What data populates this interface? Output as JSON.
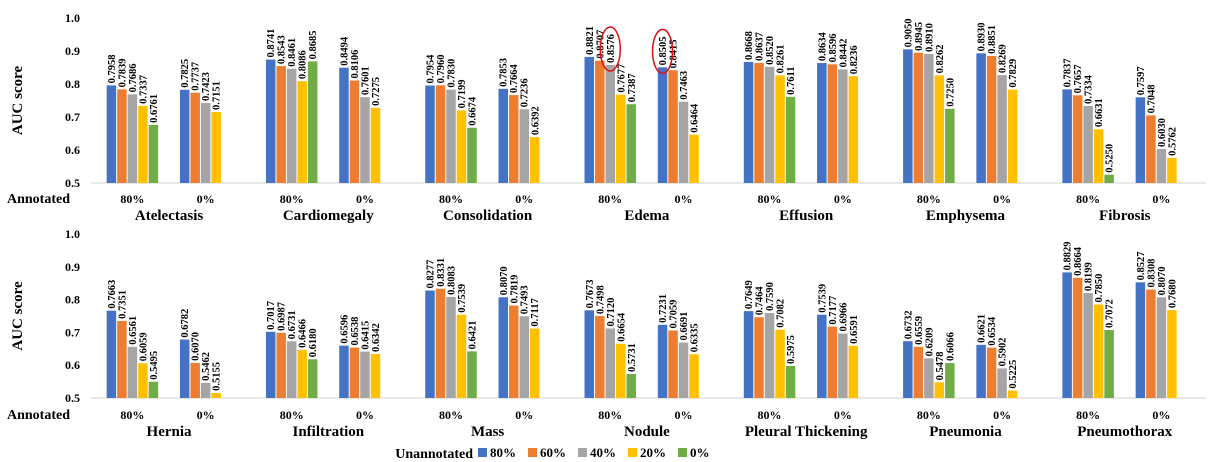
{
  "chart_data": {
    "type": "bar",
    "ylabel": "AUC score",
    "ylim": [
      0.5,
      1.0
    ],
    "yticks": [
      "0.5",
      "0.6",
      "0.7",
      "0.8",
      "0.9",
      "1.0"
    ],
    "row_label": "Annotated",
    "groups": [
      "80%",
      "0%"
    ],
    "legend": {
      "title": "Unannotated",
      "placement": "bottom",
      "series": [
        {
          "name": "80%",
          "color": "#4472C4"
        },
        {
          "name": "60%",
          "color": "#ED7D31"
        },
        {
          "name": "40%",
          "color": "#A5A5A5"
        },
        {
          "name": "20%",
          "color": "#FFC000"
        },
        {
          "name": "0%",
          "color": "#70AD47"
        }
      ]
    },
    "panels": [
      {
        "categories": [
          {
            "name": "Atelectasis",
            "values": [
              [
                0.7958,
                0.7839,
                0.7686,
                0.7337,
                0.6761
              ],
              [
                0.7825,
                0.7737,
                0.7423,
                0.7151,
                null
              ]
            ]
          },
          {
            "name": "Cardiomegaly",
            "values": [
              [
                0.8741,
                0.8543,
                0.8461,
                0.8086,
                0.8685
              ],
              [
                0.8494,
                0.8106,
                0.7601,
                0.7275,
                null
              ]
            ]
          },
          {
            "name": "Consolidation",
            "values": [
              [
                0.7954,
                0.796,
                0.783,
                0.7199,
                0.6674
              ],
              [
                0.7853,
                0.7664,
                0.7236,
                0.6392,
                null
              ]
            ]
          },
          {
            "name": "Edema",
            "values": [
              [
                0.8821,
                0.8707,
                0.8576,
                0.7677,
                0.7387
              ],
              [
                0.8505,
                0.8415,
                0.7463,
                0.6464,
                null
              ]
            ]
          },
          {
            "name": "Effusion",
            "values": [
              [
                0.8668,
                0.8637,
                0.852,
                0.8261,
                0.7611
              ],
              [
                0.8634,
                0.8596,
                0.8442,
                0.8236,
                null
              ]
            ]
          },
          {
            "name": "Emphysema",
            "values": [
              [
                0.905,
                0.8945,
                0.891,
                0.8262,
                0.725
              ],
              [
                0.893,
                0.8851,
                0.8269,
                0.7829,
                null
              ]
            ]
          },
          {
            "name": "Fibrosis",
            "values": [
              [
                0.7837,
                0.7657,
                0.7334,
                0.6631,
                0.525
              ],
              [
                0.7597,
                0.7048,
                0.603,
                0.5762,
                null
              ]
            ]
          }
        ]
      },
      {
        "categories": [
          {
            "name": "Hernia",
            "values": [
              [
                0.7663,
                0.7351,
                0.6561,
                0.6059,
                0.5495
              ],
              [
                0.6782,
                0.607,
                0.5462,
                0.5155,
                null
              ]
            ]
          },
          {
            "name": "Infiltration",
            "values": [
              [
                0.7017,
                0.6987,
                0.6731,
                0.6466,
                0.618
              ],
              [
                0.6596,
                0.6538,
                0.6415,
                0.6342,
                null
              ]
            ]
          },
          {
            "name": "Mass",
            "values": [
              [
                0.8277,
                0.8331,
                0.8083,
                0.7539,
                0.6421
              ],
              [
                0.807,
                0.7819,
                0.7493,
                0.7117,
                null
              ]
            ]
          },
          {
            "name": "Nodule",
            "values": [
              [
                0.7673,
                0.7498,
                0.712,
                0.6654,
                0.5731
              ],
              [
                0.7231,
                0.7059,
                0.6691,
                0.6335,
                null
              ]
            ]
          },
          {
            "name": "Pleural Thickening",
            "values": [
              [
                0.7649,
                0.7464,
                0.759,
                0.7082,
                0.5975
              ],
              [
                0.7539,
                0.7177,
                0.6966,
                0.6591,
                null
              ]
            ]
          },
          {
            "name": "Pneumonia",
            "values": [
              [
                0.6732,
                0.6559,
                0.6209,
                0.5478,
                0.6066
              ],
              [
                0.6621,
                0.6534,
                0.5902,
                0.5225,
                null
              ]
            ]
          },
          {
            "name": "Pneumothorax",
            "values": [
              [
                0.8829,
                0.8664,
                0.8199,
                0.785,
                0.7072
              ],
              [
                0.8527,
                0.8308,
                0.807,
                0.768,
                null
              ]
            ]
          }
        ]
      }
    ],
    "annotations": [
      {
        "type": "circle",
        "category": "Edema",
        "group": "80%",
        "series": "40%"
      },
      {
        "type": "circle",
        "category": "Edema",
        "group": "0%",
        "series": "80%"
      }
    ]
  }
}
